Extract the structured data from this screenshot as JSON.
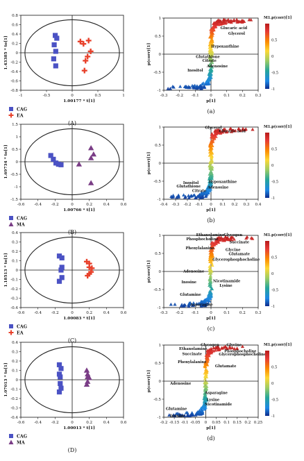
{
  "colors": {
    "cag": "#4b52c4",
    "ea": "#e8412b",
    "ma": "#7a3d86",
    "axis": "#111111",
    "ellipse": "#222222"
  },
  "colorbar_title": "M1.p(corr)[1]",
  "colorbar_ticks": [
    "0.5",
    "0",
    "-0.5",
    "-1"
  ],
  "chart_data": [
    {
      "type": "scatter",
      "panel": "score",
      "label": "(A)",
      "xlabel": "1.00177 * t[1]",
      "ylabel": "1.43385 * to[1]",
      "xlim": [
        -1,
        1
      ],
      "ylim": [
        -0.8,
        0.8
      ],
      "xticks": [
        "-1",
        "-0.5",
        "0",
        "0.5",
        "1"
      ],
      "yticks": [
        "0.8",
        "0.6",
        "0.4",
        "0.2",
        "0",
        "-0.2",
        "-0.4",
        "-0.6",
        "-0.8"
      ],
      "legend": [
        "CAG",
        "EA"
      ],
      "series": [
        {
          "name": "CAG",
          "marker": "square",
          "points": [
            [
              -0.33,
              0.37
            ],
            [
              -0.3,
              0.31
            ],
            [
              -0.35,
              0.17
            ],
            [
              -0.32,
              0.03
            ],
            [
              -0.36,
              -0.13
            ],
            [
              -0.32,
              -0.28
            ]
          ]
        },
        {
          "name": "EA",
          "marker": "cross",
          "points": [
            [
              0.16,
              0.24
            ],
            [
              0.32,
              0.26
            ],
            [
              0.22,
              0.19
            ],
            [
              0.36,
              0.03
            ],
            [
              0.3,
              -0.08
            ],
            [
              0.26,
              -0.17
            ],
            [
              0.24,
              -0.38
            ]
          ]
        }
      ]
    },
    {
      "type": "scatter",
      "panel": "s-plot",
      "label": "(a)",
      "xlabel": "p[1]",
      "ylabel": "p(corr)[1]",
      "xlim": [
        -0.3,
        0.3
      ],
      "ylim": [
        -1,
        1
      ],
      "xticks": [
        "-0.3",
        "-0.2",
        "-0.1",
        "0",
        "0.1",
        "0.2",
        "0.3"
      ],
      "yticks": [
        "1",
        "0.5",
        "0",
        "-0.5",
        "-1"
      ],
      "annotations": [
        {
          "text": "Glucaric acid",
          "x": 0.145,
          "y": 0.69
        },
        {
          "text": "Glycerol",
          "x": 0.163,
          "y": 0.54
        },
        {
          "text": "Hypoxanthine",
          "x": 0.09,
          "y": 0.18
        },
        {
          "text": "Glutathione",
          "x": -0.02,
          "y": -0.11
        },
        {
          "text": "Citrate",
          "x": -0.01,
          "y": -0.21
        },
        {
          "text": "Adenosine",
          "x": 0.04,
          "y": -0.37
        },
        {
          "text": "Inositol",
          "x": -0.1,
          "y": -0.48
        }
      ]
    },
    {
      "type": "scatter",
      "panel": "score",
      "label": "(B)",
      "xlabel": "1.00766 * t[1]",
      "ylabel": "1.69734 * to[1]",
      "xlim": [
        -0.6,
        0.6
      ],
      "ylim": [
        -1.5,
        1.5
      ],
      "xticks": [
        "-0.6",
        "-0.4",
        "-0.2",
        "0",
        "0.2",
        "0.4",
        "0.6"
      ],
      "yticks": [
        "1.5",
        "1",
        "0.5",
        "0",
        "-0.5",
        "-1",
        "-1.5"
      ],
      "legend": [
        "CAG",
        "MA"
      ],
      "series": [
        {
          "name": "CAG",
          "marker": "square",
          "points": [
            [
              -0.25,
              0.25
            ],
            [
              -0.22,
              0.1
            ],
            [
              -0.19,
              -0.05
            ],
            [
              -0.16,
              -0.1
            ],
            [
              -0.13,
              -0.12
            ]
          ]
        },
        {
          "name": "MA",
          "marker": "triangle",
          "points": [
            [
              0.22,
              0.55
            ],
            [
              0.25,
              0.3
            ],
            [
              0.22,
              0.15
            ],
            [
              0.08,
              -0.1
            ],
            [
              0.22,
              -0.85
            ]
          ]
        }
      ]
    },
    {
      "type": "scatter",
      "panel": "s-plot",
      "label": "(b)",
      "xlabel": "p[1]",
      "ylabel": "p(corr)[1]",
      "xlim": [
        -0.4,
        0.4
      ],
      "ylim": [
        -1,
        1
      ],
      "xticks": [
        "-0.4",
        "-0.3",
        "-0.2",
        "-0.1",
        "0",
        "0.1",
        "0.2",
        "0.3",
        "0.4"
      ],
      "yticks": [
        "1",
        "0.5",
        "0",
        "-0.5",
        "-1"
      ],
      "annotations": [
        {
          "text": "Glycerol",
          "x": 0.02,
          "y": 0.95
        },
        {
          "text": "Glucaric acid",
          "x": 0.18,
          "y": 0.86
        },
        {
          "text": "Hypoxanthine",
          "x": 0.1,
          "y": -0.55
        },
        {
          "text": "Inositol",
          "x": -0.17,
          "y": -0.58
        },
        {
          "text": "Glutathione",
          "x": -0.19,
          "y": -0.67
        },
        {
          "text": "Adenosine",
          "x": 0.06,
          "y": -0.7
        },
        {
          "text": "Citrate",
          "x": -0.1,
          "y": -0.8
        }
      ]
    },
    {
      "type": "scatter",
      "panel": "score",
      "label": "(C)",
      "xlabel": "1.00083 * t[1]",
      "ylabel": "1.18513 * to[1]",
      "xlim": [
        -0.6,
        0.6
      ],
      "ylim": [
        -0.4,
        0.4
      ],
      "xticks": [
        "-0.6",
        "-0.4",
        "-0.2",
        "0",
        "0.2",
        "0.4",
        "0.6"
      ],
      "yticks": [
        "0.4",
        "0.3",
        "0.2",
        "0.1",
        "0",
        "-0.1",
        "-0.2",
        "-0.3",
        "-0.4"
      ],
      "legend": [
        "CAG",
        "EA"
      ],
      "series": [
        {
          "name": "CAG",
          "marker": "square",
          "points": [
            [
              -0.15,
              0.15
            ],
            [
              -0.12,
              0.13
            ],
            [
              -0.12,
              0.03
            ],
            [
              -0.13,
              0.0
            ],
            [
              -0.12,
              -0.08
            ],
            [
              -0.15,
              -0.12
            ]
          ]
        },
        {
          "name": "EA",
          "marker": "cross",
          "points": [
            [
              0.17,
              0.09
            ],
            [
              0.2,
              0.07
            ],
            [
              0.2,
              0.03
            ],
            [
              0.23,
              0.02
            ],
            [
              0.22,
              -0.02
            ],
            [
              0.2,
              -0.04
            ],
            [
              0.18,
              -0.06
            ]
          ]
        }
      ]
    },
    {
      "type": "scatter",
      "panel": "s-plot",
      "label": "(c)",
      "xlabel": "p[1]",
      "ylabel": "p(corr)[1]",
      "xlim": [
        -0.3,
        0.3
      ],
      "ylim": [
        -1,
        1
      ],
      "xticks": [
        "-0.3",
        "-0.2",
        "-0.1",
        "0",
        "0.1",
        "0.2",
        "0.3"
      ],
      "yticks": [
        "1",
        "0.5",
        "0",
        "-0.5",
        "-1"
      ],
      "annotations": [
        {
          "text": "Ethanolamine",
          "x": -0.005,
          "y": 0.98
        },
        {
          "text": "Glycogen",
          "x": 0.14,
          "y": 0.98
        },
        {
          "text": "Phosphocholine",
          "x": -0.055,
          "y": 0.87
        },
        {
          "text": "Succinate",
          "x": 0.18,
          "y": 0.78
        },
        {
          "text": "Phenylalanine",
          "x": -0.07,
          "y": 0.62
        },
        {
          "text": "Glycine",
          "x": 0.14,
          "y": 0.57
        },
        {
          "text": "Glutamate",
          "x": 0.18,
          "y": 0.45
        },
        {
          "text": "Glycerophosphocholine",
          "x": 0.16,
          "y": 0.3
        },
        {
          "text": "Adenosine",
          "x": -0.11,
          "y": -0.03
        },
        {
          "text": "Nicotinamide",
          "x": 0.1,
          "y": -0.3
        },
        {
          "text": "Inosine",
          "x": -0.14,
          "y": -0.33
        },
        {
          "text": "Lysine",
          "x": 0.095,
          "y": -0.42
        },
        {
          "text": "Glutamine",
          "x": -0.13,
          "y": -0.67
        },
        {
          "text": "Asparagine",
          "x": -0.06,
          "y": -0.95
        }
      ]
    },
    {
      "type": "scatter",
      "panel": "score",
      "label": "(D)",
      "xlabel": "1.00013 * t[1]",
      "ylabel": "1.07013 * to[1]",
      "xlim": [
        -0.6,
        0.6
      ],
      "ylim": [
        -0.4,
        0.4
      ],
      "xticks": [
        "-0.6",
        "-0.4",
        "-0.2",
        "0",
        "0.2",
        "0.4",
        "0.6"
      ],
      "yticks": [
        "0.4",
        "0.3",
        "0.2",
        "0.1",
        "0",
        "-0.1",
        "-0.2",
        "-0.3",
        "-0.4"
      ],
      "legend": [
        "CAG",
        "MA"
      ],
      "series": [
        {
          "name": "CAG",
          "marker": "square",
          "points": [
            [
              -0.15,
              0.16
            ],
            [
              -0.13,
              0.12
            ],
            [
              -0.15,
              0.06
            ],
            [
              -0.14,
              0.03
            ],
            [
              -0.14,
              -0.04
            ],
            [
              -0.13,
              -0.09
            ],
            [
              -0.15,
              -0.13
            ]
          ]
        },
        {
          "name": "MA",
          "marker": "triangle",
          "points": [
            [
              0.17,
              0.1
            ],
            [
              0.18,
              0.06
            ],
            [
              0.18,
              0.03
            ],
            [
              0.2,
              0.02
            ],
            [
              0.18,
              -0.02
            ],
            [
              0.17,
              -0.05
            ]
          ]
        }
      ]
    },
    {
      "type": "scatter",
      "panel": "s-plot",
      "label": "(d)",
      "xlabel": "p[1]",
      "ylabel": "p(corr)[1]",
      "xlim": [
        -0.2,
        0.25
      ],
      "ylim": [
        -1,
        1
      ],
      "xticks": [
        "-0.2",
        "-0.15",
        "-0.1",
        "-0.05",
        "0",
        "0.05",
        "0.1",
        "0.15",
        "0.2",
        "0.25"
      ],
      "yticks": [
        "1",
        "0.5",
        "0",
        "-0.5",
        "-1"
      ],
      "annotations": [
        {
          "text": "Glycogen",
          "x": 0.02,
          "y": 0.97
        },
        {
          "text": "Glycine",
          "x": 0.135,
          "y": 0.97
        },
        {
          "text": "Ethanolamine",
          "x": -0.06,
          "y": 0.87
        },
        {
          "text": "Phosphocholine",
          "x": 0.165,
          "y": 0.8
        },
        {
          "text": "Succinate",
          "x": -0.065,
          "y": 0.72
        },
        {
          "text": "Glycerophosphocholine",
          "x": 0.175,
          "y": 0.71
        },
        {
          "text": "Phenylalanine",
          "x": -0.065,
          "y": 0.5
        },
        {
          "text": "Glutamate",
          "x": 0.095,
          "y": 0.38
        },
        {
          "text": "Adenosine",
          "x": -0.12,
          "y": -0.1
        },
        {
          "text": "Asparagine",
          "x": 0.05,
          "y": -0.36
        },
        {
          "text": "Lysine",
          "x": 0.035,
          "y": -0.55
        },
        {
          "text": "Nicotinamide",
          "x": 0.06,
          "y": -0.67
        },
        {
          "text": "Glutamine",
          "x": -0.14,
          "y": -0.8
        },
        {
          "text": "Inosine",
          "x": -0.135,
          "y": -0.99
        }
      ]
    }
  ]
}
